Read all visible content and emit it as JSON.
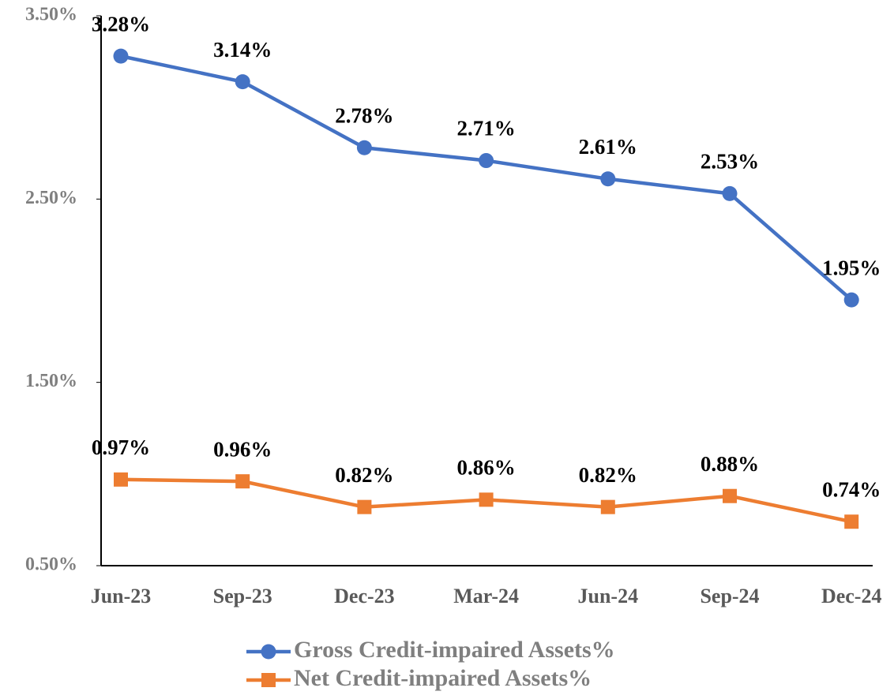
{
  "chart_data": {
    "type": "line",
    "categories": [
      "Jun-23",
      "Sep-23",
      "Dec-23",
      "Mar-24",
      "Jun-24",
      "Sep-24",
      "Dec-24"
    ],
    "series": [
      {
        "name": "Gross Credit-impaired Assets%",
        "color": "#4472c4",
        "marker": "circle",
        "values": [
          3.28,
          3.14,
          2.78,
          2.71,
          2.61,
          2.53,
          1.95
        ],
        "value_labels": [
          "3.28%",
          "3.14%",
          "2.78%",
          "2.71%",
          "2.61%",
          "2.53%",
          "1.95%"
        ]
      },
      {
        "name": "Net Credit-impaired Assets%",
        "color": "#ed7d31",
        "marker": "square",
        "values": [
          0.97,
          0.96,
          0.82,
          0.86,
          0.82,
          0.88,
          0.74
        ],
        "value_labels": [
          "0.97%",
          "0.96%",
          "0.82%",
          "0.86%",
          "0.82%",
          "0.88%",
          "0.74%"
        ]
      }
    ],
    "ylim": [
      0.5,
      3.5
    ],
    "yticks": [
      {
        "value": 0.5,
        "label": "0.50%"
      },
      {
        "value": 1.5,
        "label": "1.50%"
      },
      {
        "value": 2.5,
        "label": "2.50%"
      },
      {
        "value": 3.5,
        "label": "3.50%"
      }
    ],
    "grid": false,
    "legend": "bottom"
  }
}
